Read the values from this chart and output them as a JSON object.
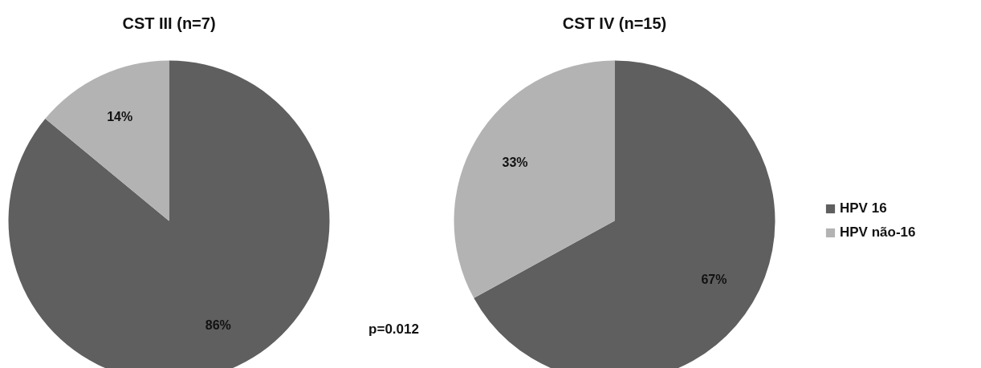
{
  "chart_data": [
    {
      "type": "pie",
      "title": "CST III (n=7)",
      "categories": [
        null,
        null
      ],
      "values": [
        86,
        14
      ],
      "colors": [
        "#5f5f5f",
        "#b3b3b3"
      ],
      "value_labels": [
        "86%",
        "14%"
      ],
      "legend": false,
      "annotations": [
        "p=0.012"
      ]
    },
    {
      "type": "pie",
      "title": "CST IV (n=15)",
      "categories": [
        "HPV 16",
        "HPV não-16"
      ],
      "values": [
        67,
        33
      ],
      "colors": [
        "#5f5f5f",
        "#b3b3b3"
      ],
      "value_labels": [
        "67%",
        "33%"
      ],
      "legend": "right"
    }
  ]
}
